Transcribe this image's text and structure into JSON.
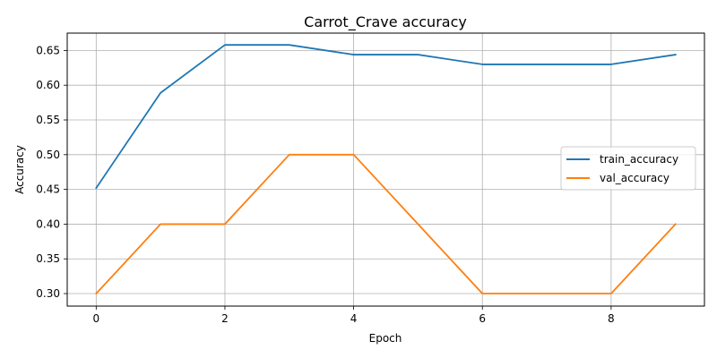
{
  "chart_data": {
    "type": "line",
    "title": "Carrot_Crave accuracy",
    "xlabel": "Epoch",
    "ylabel": "Accuracy",
    "x": [
      0,
      1,
      2,
      3,
      4,
      5,
      6,
      7,
      8,
      9
    ],
    "xlim": [
      -0.45,
      9.45
    ],
    "ylim": [
      0.282,
      0.675
    ],
    "xticks": [
      0,
      2,
      4,
      6,
      8
    ],
    "yticks": [
      0.3,
      0.35,
      0.4,
      0.45,
      0.5,
      0.55,
      0.6,
      0.65
    ],
    "grid": true,
    "legend_position": "center-right",
    "series": [
      {
        "name": "train_accuracy",
        "color": "#1f77b4",
        "values": [
          0.452,
          0.589,
          0.658,
          0.658,
          0.644,
          0.644,
          0.63,
          0.63,
          0.63,
          0.644
        ]
      },
      {
        "name": "val_accuracy",
        "color": "#ff7f0e",
        "values": [
          0.3,
          0.4,
          0.4,
          0.5,
          0.5,
          0.4,
          0.3,
          0.3,
          0.3,
          0.4
        ]
      }
    ]
  }
}
